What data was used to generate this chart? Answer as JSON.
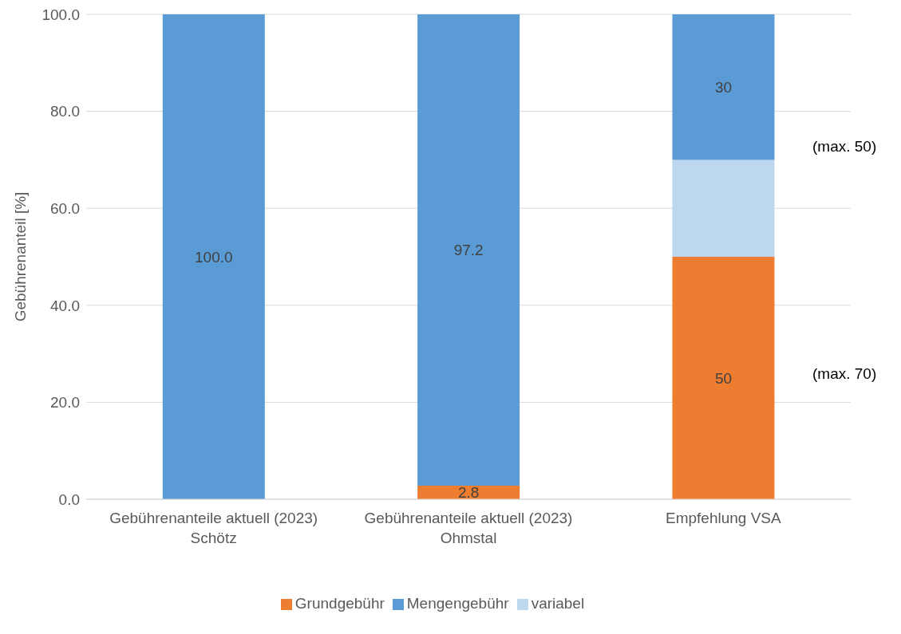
{
  "chart_data": {
    "type": "bar",
    "stacked": true,
    "ylabel": "Gebührenanteil [%]",
    "categories": [
      "Gebührenanteile aktuell (2023) Schötz",
      "Gebührenanteile aktuell (2023) Ohmstal",
      "Empfehlung VSA"
    ],
    "series": [
      {
        "name": "Grundgebühr",
        "color": "#ed7d31",
        "values": [
          0,
          2.8,
          50
        ],
        "value_labels": [
          null,
          "2.8",
          "50"
        ]
      },
      {
        "name": "variabel",
        "color": "#bdd7ee",
        "values": [
          0,
          0,
          20
        ],
        "value_labels": [
          null,
          null,
          null
        ]
      },
      {
        "name": "Mengengebühr",
        "color": "#5b9bd5",
        "values": [
          100,
          97.2,
          30
        ],
        "value_labels": [
          "100.0",
          "97.2",
          "30"
        ]
      }
    ],
    "ylim": [
      0,
      100
    ],
    "yticks": [
      {
        "value": 0,
        "label": "0.0"
      },
      {
        "value": 20,
        "label": "20.0"
      },
      {
        "value": 40,
        "label": "40.0"
      },
      {
        "value": 60,
        "label": "60.0"
      },
      {
        "value": 80,
        "label": "80.0"
      },
      {
        "value": 100,
        "label": "100.0"
      }
    ],
    "grid": "y",
    "legend": "bottom",
    "annotations": [
      "(max. 50)",
      "(max. 70)"
    ]
  }
}
